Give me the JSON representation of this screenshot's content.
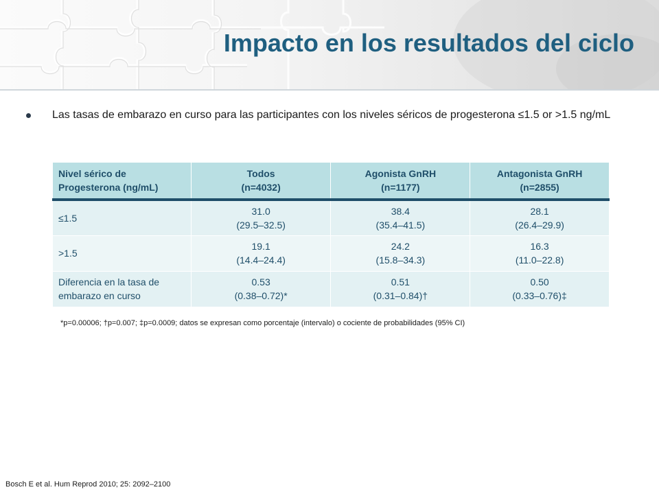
{
  "title": "Impacto en los resultados del ciclo",
  "bullet": "Las tasas de embarazo en curso para las participantes con los niveles séricos de progesterona ≤1.5 or >1.5 ng/mL",
  "table": {
    "headers": [
      [
        "Nivel sérico de",
        "Progesterona (ng/mL)"
      ],
      [
        "Todos",
        "(n=4032)"
      ],
      [
        "Agonista GnRH",
        "(n=1177)"
      ],
      [
        "Antagonista GnRH",
        "(n=2855)"
      ]
    ],
    "rows": [
      {
        "label": [
          "≤1.5"
        ],
        "cells": [
          [
            "31.0",
            "(29.5–32.5)"
          ],
          [
            "38.4",
            "(35.4–41.5)"
          ],
          [
            "28.1",
            "(26.4–29.9)"
          ]
        ]
      },
      {
        "label": [
          ">1.5"
        ],
        "cells": [
          [
            "19.1",
            "(14.4–24.4)"
          ],
          [
            "24.2",
            "(15.8–34.3)"
          ],
          [
            "16.3",
            "(11.0–22.8)"
          ]
        ]
      },
      {
        "label": [
          "Diferencia en la tasa de",
          "embarazo en curso"
        ],
        "cells": [
          [
            "0.53",
            "(0.38–0.72)*"
          ],
          [
            "0.51",
            "(0.31–0.84)†"
          ],
          [
            "0.50",
            "(0.33–0.76)‡"
          ]
        ]
      }
    ]
  },
  "footnote": "*p=0.00006; †p=0.007; ‡p=0.0009; datos se expresan como porcentaje (intervalo) o cociente de probabilidades (95% CI)",
  "citation": "Bosch E et al. Hum Reprod 2010; 25: 2092–2100",
  "colors": {
    "title": "#1f5f80",
    "header_fill": "#b9dfe3",
    "cell_fill": "#e3f1f3",
    "header_rule": "#1f4e69"
  }
}
